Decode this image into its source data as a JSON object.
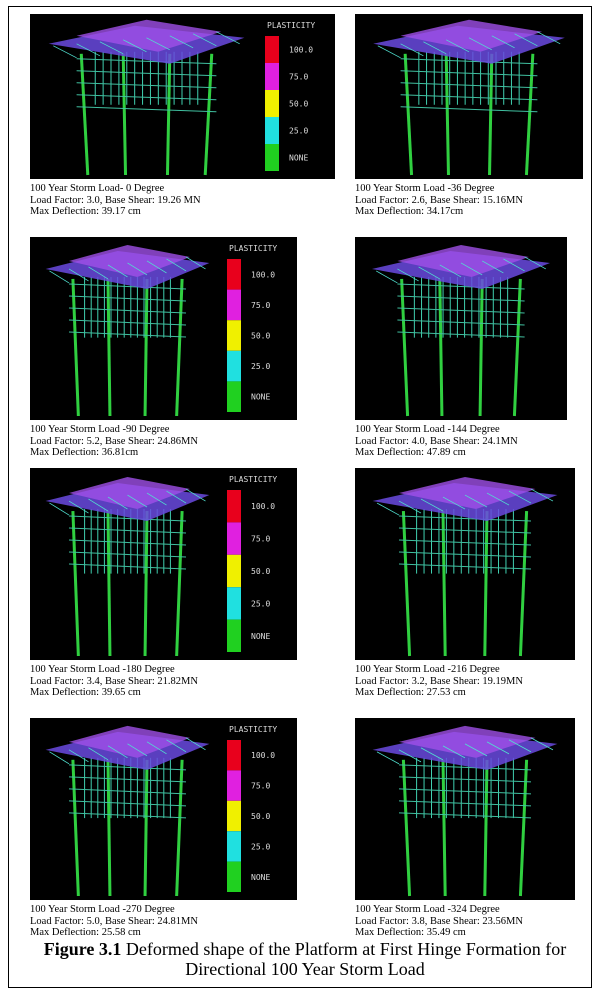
{
  "panels": [
    {
      "caption": [
        "100 Year Storm Load- 0 Degree",
        "Load Factor: 3.0, Base Shear: 19.26 MN",
        "Max Deflection: 39.17 cm"
      ],
      "legend": true
    },
    {
      "caption": [
        "100 Year Storm Load -36 Degree",
        "Load Factor: 2.6, Base Shear: 15.16MN",
        "Max Deflection: 34.17cm"
      ],
      "legend": false
    },
    {
      "caption": [
        "100 Year Storm Load -90 Degree",
        "Load Factor: 5.2, Base Shear: 24.86MN",
        "Max Deflection: 36.81cm"
      ],
      "legend": true
    },
    {
      "caption": [
        "100 Year Storm Load -144 Degree",
        "Load Factor: 4.0, Base Shear: 24.1MN",
        "Max Deflection: 47.89 cm"
      ],
      "legend": false
    },
    {
      "caption": [
        "100 Year Storm Load -180 Degree",
        "Load Factor: 3.4, Base Shear: 21.82MN",
        "Max Deflection: 39.65 cm"
      ],
      "legend": true
    },
    {
      "caption": [
        "100 Year Storm Load -216 Degree",
        "Load Factor: 3.2, Base Shear: 19.19MN",
        "Max Deflection: 27.53 cm"
      ],
      "legend": false
    },
    {
      "caption": [
        "100 Year Storm Load -270 Degree",
        "Load Factor: 5.0, Base Shear: 24.81MN",
        "Max Deflection: 25.58 cm"
      ],
      "legend": true
    },
    {
      "caption": [
        "100 Year Storm Load -324 Degree",
        "Load Factor: 3.8, Base Shear: 23.56MN",
        "Max Deflection: 35.49 cm"
      ],
      "legend": false
    }
  ],
  "legend": {
    "title": "PLASTICITY",
    "labels": [
      "100.0",
      "75.0",
      "50.0",
      "25.0",
      "NONE"
    ]
  },
  "figure_caption": {
    "label": "Figure 3.1",
    "text": "Deformed shape of the Platform at First Hinge Formation for Directional 100 Year Storm Load"
  }
}
